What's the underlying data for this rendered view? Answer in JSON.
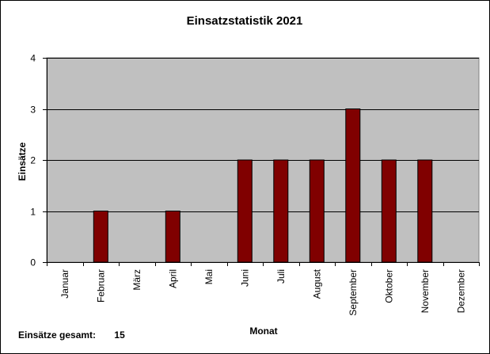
{
  "chart_data": {
    "type": "bar",
    "title": "Einsatzstatistik 2021",
    "xlabel": "Monat",
    "ylabel": "Einsätze",
    "categories": [
      "Januar",
      "Februar",
      "März",
      "April",
      "Mai",
      "Juni",
      "Juli",
      "August",
      "September",
      "Oktober",
      "November",
      "Dezember"
    ],
    "values": [
      0,
      1,
      0,
      1,
      0,
      2,
      2,
      2,
      3,
      2,
      2,
      0
    ],
    "ylim": [
      0,
      4
    ],
    "yticks": [
      "0",
      "1",
      "2",
      "3",
      "4"
    ],
    "grid": true,
    "legend": "none",
    "colors": {
      "bar": "#800000",
      "bar_edge": "#000000",
      "plot_background": "#c0c0c0",
      "gridline": "#000000"
    }
  },
  "footer": {
    "total_label": "Einsätze gesamt:",
    "total_value": "15"
  }
}
